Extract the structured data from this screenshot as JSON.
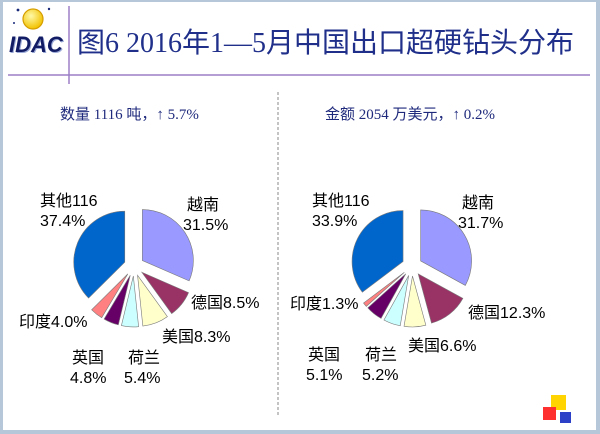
{
  "logo": {
    "text": "IDAC"
  },
  "title": "图6 2016年1—5月中国出口超硬钻头分布",
  "chart_data": [
    {
      "type": "pie",
      "title": "数量 1116 吨，↑ 5.7%",
      "categories": [
        "越南",
        "德国",
        "美国",
        "荷兰",
        "英国",
        "印度",
        "其他116"
      ],
      "values": [
        31.5,
        8.5,
        8.3,
        5.4,
        4.8,
        4.0,
        37.4
      ],
      "value_labels": [
        "31.5%",
        "8.5%",
        "8.3%",
        "5.4%",
        "4.8%",
        "4.0%",
        "37.4%"
      ],
      "colors": [
        "#9999ff",
        "#993366",
        "#ffffcc",
        "#ccffff",
        "#660066",
        "#ff8080",
        "#0066cc"
      ]
    },
    {
      "type": "pie",
      "title": "金额 2054 万美元，↑ 0.2%",
      "categories": [
        "越南",
        "德国",
        "美国",
        "荷兰",
        "英国",
        "印度",
        "其他116"
      ],
      "values": [
        31.7,
        12.3,
        6.6,
        5.2,
        5.1,
        1.3,
        33.9
      ],
      "value_labels": [
        "31.7%",
        "12.3%",
        "6.6%",
        "5.2%",
        "5.1%",
        "1.3%",
        "33.9%"
      ],
      "colors": [
        "#9999ff",
        "#993366",
        "#ffffcc",
        "#ccffff",
        "#660066",
        "#ff8080",
        "#0066cc"
      ]
    }
  ]
}
